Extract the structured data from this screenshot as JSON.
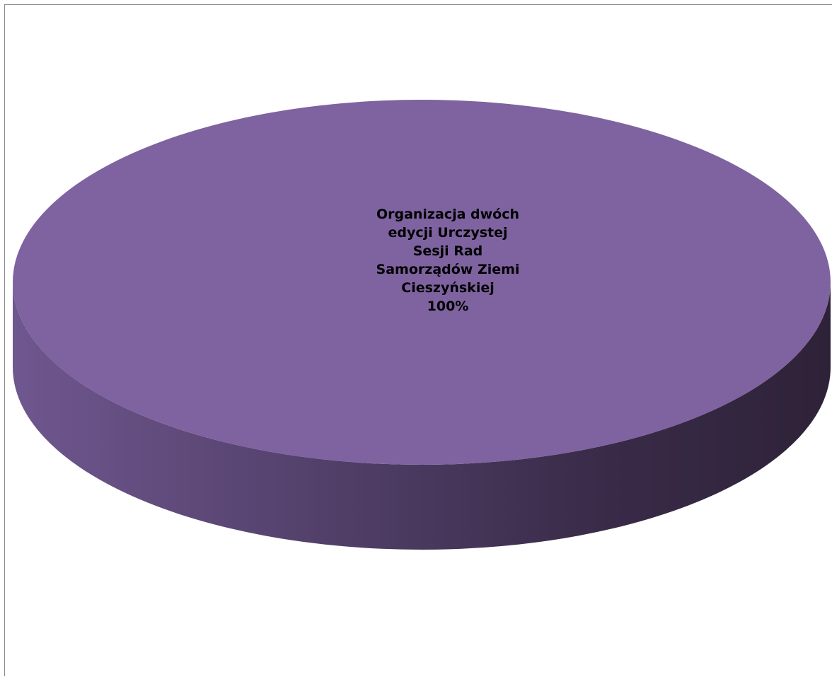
{
  "chart_data": {
    "type": "pie",
    "style": "3d",
    "categories": [
      "Organizacja dwóch edycji Urczystej Sesji Rad Samorządów Ziemi Cieszyńskiej"
    ],
    "values": [
      100
    ],
    "data_labels": [
      {
        "lines": [
          "Organizacja dwóch",
          "edycji Urczystej",
          "Sesji Rad",
          "Samorządów Ziemi",
          "Cieszyńskiej",
          "100%"
        ]
      }
    ],
    "title": "",
    "legend": "none",
    "colors": {
      "top": "#7e63a0",
      "side_light": "#6f578f",
      "side_dark": "#2e2238",
      "label": "#000000",
      "frame": "#8c8c8c"
    }
  }
}
